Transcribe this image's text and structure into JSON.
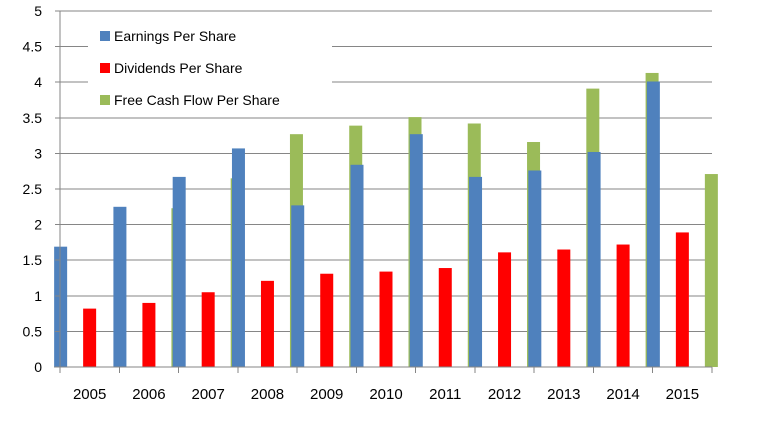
{
  "chart_data": {
    "type": "bar",
    "categories": [
      "2005",
      "2006",
      "2007",
      "2008",
      "2009",
      "2010",
      "2011",
      "2012",
      "2013",
      "2014",
      "2015"
    ],
    "series": [
      {
        "name": "Earnings Per Share",
        "color": "#4f81bd",
        "values": [
          1.69,
          2.25,
          2.67,
          3.07,
          2.27,
          2.84,
          3.27,
          2.67,
          2.76,
          3.02,
          4.01
        ]
      },
      {
        "name": "Dividends Per Share",
        "color": "#ff0000",
        "values": [
          0.82,
          0.9,
          1.05,
          1.21,
          1.31,
          1.34,
          1.39,
          1.61,
          1.65,
          1.72,
          1.89
        ]
      },
      {
        "name": "Free Cash Flow Per Share",
        "color": "#9bbb59",
        "values": [
          null,
          2.23,
          2.65,
          3.27,
          3.39,
          3.51,
          3.42,
          3.16,
          3.91,
          4.13,
          2.71
        ]
      }
    ],
    "title": "",
    "xlabel": "",
    "ylabel": "",
    "ylim": [
      0,
      5
    ],
    "yticks": [
      "0",
      "0.5",
      "1",
      "1.5",
      "2",
      "2.5",
      "3",
      "3.5",
      "4",
      "4.5",
      "5"
    ],
    "grid": "horizontal",
    "legend_position": "top-left"
  }
}
